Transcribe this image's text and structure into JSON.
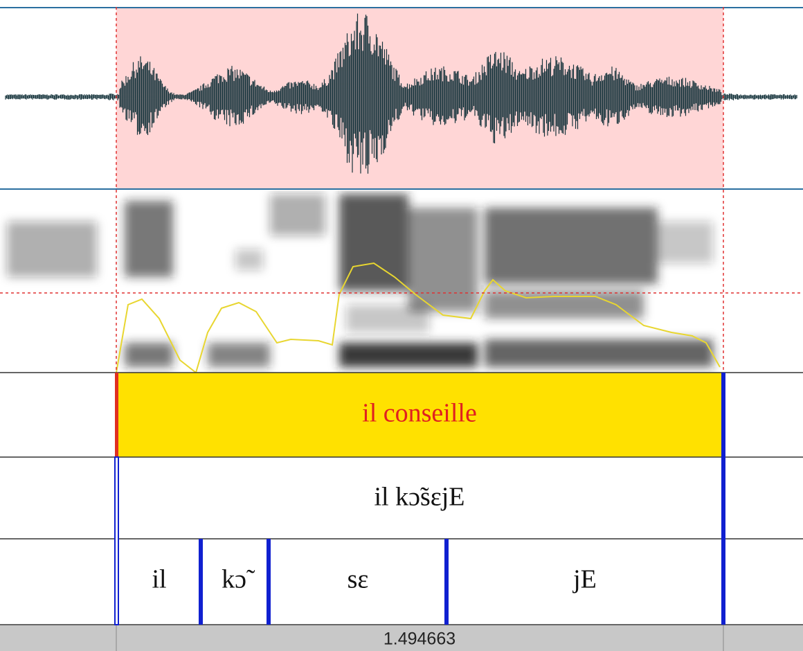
{
  "tiers": [
    [
      "il conseille"
    ],
    [
      "il kɔ̃sɛjE"
    ],
    [
      "il",
      "kɔ̃",
      "sɛ",
      "jE"
    ]
  ],
  "selection_duration": 1.494663
}
